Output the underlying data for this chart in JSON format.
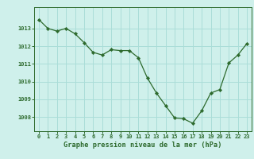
{
  "x": [
    0,
    1,
    2,
    3,
    4,
    5,
    6,
    7,
    8,
    9,
    10,
    11,
    12,
    13,
    14,
    15,
    16,
    17,
    18,
    19,
    20,
    21,
    22,
    23
  ],
  "y": [
    1013.5,
    1013.0,
    1012.85,
    1013.0,
    1012.7,
    1012.2,
    1011.65,
    1011.5,
    1011.8,
    1011.75,
    1011.75,
    1011.35,
    1010.2,
    1009.35,
    1008.65,
    1007.95,
    1007.9,
    1007.65,
    1008.35,
    1009.35,
    1009.55,
    1011.05,
    1011.5,
    1012.15
  ],
  "line_color": "#2d6a2d",
  "marker_color": "#2d6a2d",
  "bg_color": "#cff0eb",
  "grid_color": "#aaddd8",
  "xlabel": "Graphe pression niveau de la mer (hPa)",
  "ylim_min": 1007.2,
  "ylim_max": 1014.2,
  "yticks": [
    1008,
    1009,
    1010,
    1011,
    1012,
    1013
  ],
  "xticks": [
    0,
    1,
    2,
    3,
    4,
    5,
    6,
    7,
    8,
    9,
    10,
    11,
    12,
    13,
    14,
    15,
    16,
    17,
    18,
    19,
    20,
    21,
    22,
    23
  ]
}
